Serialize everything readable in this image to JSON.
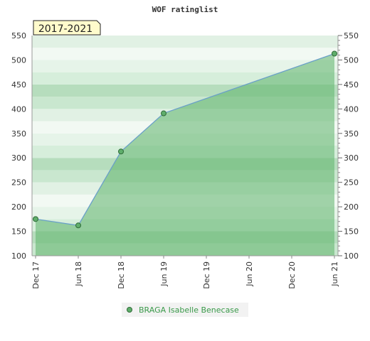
{
  "chart_data": {
    "type": "area",
    "title": "WOF ratinglist",
    "period_label": "2017-2021",
    "xlabel": "",
    "ylabel": "",
    "x_ticks": [
      "Dec 17",
      "Jun 18",
      "Dec 18",
      "Jun 19",
      "Dec 19",
      "Jun 20",
      "Dec 20",
      "Jun 21"
    ],
    "ylim": [
      100,
      550
    ],
    "y_ticks": [
      100,
      150,
      200,
      250,
      300,
      350,
      400,
      450,
      500,
      550
    ],
    "series": [
      {
        "name": "BRAGA Isabelle Benecase",
        "points": [
          {
            "x": "Dec 17",
            "y": 175
          },
          {
            "x": "Jun 18",
            "y": 162
          },
          {
            "x": "Dec 18",
            "y": 313
          },
          {
            "x": "Jun 19",
            "y": 391
          },
          {
            "x": "Jun 21",
            "y": 513
          }
        ]
      }
    ],
    "grid": true,
    "legend_position": "bottom",
    "colors": {
      "area_fill": "#5cb36a",
      "line": "#6aa0c8",
      "marker": "#5fae6b",
      "legend_text": "#3a9a4a",
      "period_box": "#fffbcc"
    }
  }
}
